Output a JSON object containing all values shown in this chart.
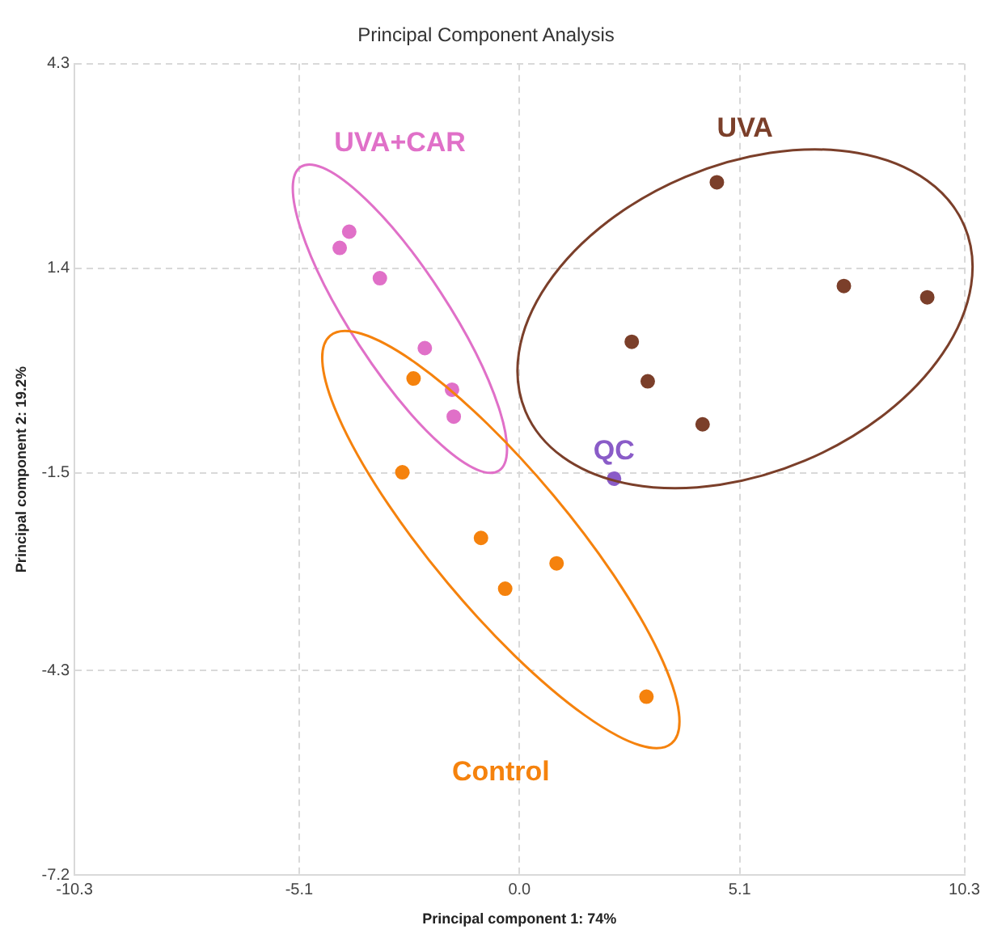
{
  "chart_data": {
    "type": "scatter",
    "title": "Principal Component Analysis",
    "xlabel": "Principal component 1: 74%",
    "ylabel": "Principal component 2: 19.2%",
    "xlim": [
      -10.3,
      10.3
    ],
    "xticks": [
      -10.3,
      -5.1,
      {
        "value": 0,
        "label": "0.0"
      },
      5.1,
      10.3
    ],
    "ylim": [
      -7.2,
      4.3
    ],
    "yticks": [
      -7.2,
      -4.3,
      -1.5,
      1.4,
      4.3
    ],
    "grid": true,
    "legend": false,
    "marker": "circle",
    "series": [
      {
        "name": "UVA+CAR",
        "color": "#e070c8",
        "x": [
          -3.94,
          -4.16,
          -3.23,
          -2.19,
          -1.56,
          -1.52
        ],
        "values": [
          1.92,
          1.69,
          1.26,
          0.27,
          -0.32,
          -0.7
        ]
      },
      {
        "name": "Control",
        "color": "#f5820d",
        "x": [
          -2.45,
          -2.71,
          -0.89,
          0.86,
          -0.33,
          2.94
        ],
        "values": [
          -0.16,
          -1.49,
          -2.42,
          -2.78,
          -3.14,
          -4.67
        ]
      },
      {
        "name": "UVA",
        "color": "#7b3f2a",
        "x": [
          4.57,
          7.51,
          9.44,
          2.6,
          2.97,
          4.24
        ],
        "values": [
          2.62,
          1.15,
          0.99,
          0.36,
          -0.2,
          -0.81
        ]
      },
      {
        "name": "QC",
        "color": "#8a5cc8",
        "x": [
          2.19
        ],
        "values": [
          -1.58
        ]
      }
    ]
  }
}
